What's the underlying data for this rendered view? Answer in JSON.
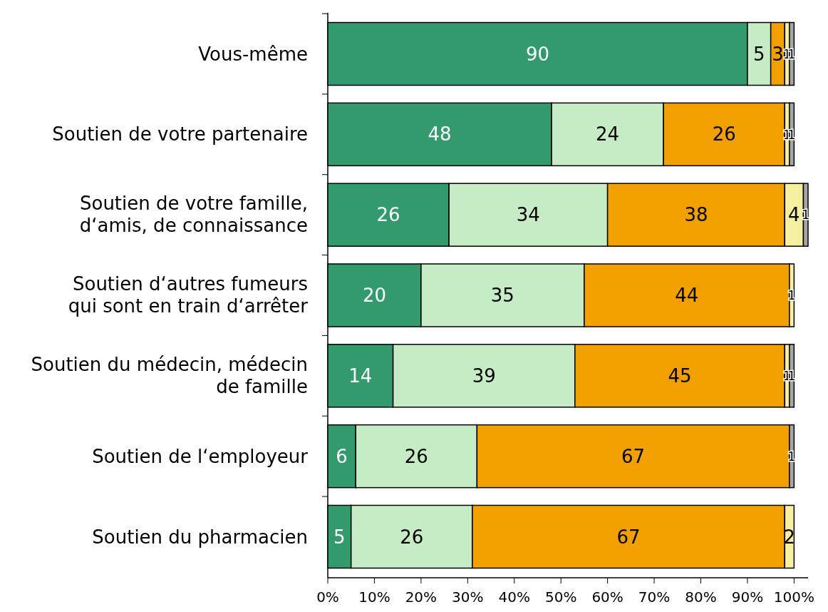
{
  "chart_data": {
    "type": "bar",
    "orientation": "horizontal",
    "stacked": true,
    "data_labels": true,
    "categories": [
      "Vous-même",
      "Soutien de votre partenaire",
      "Soutien de votre famille, d‘amis, de connaissance",
      "Soutien d‘autres fumeurs qui sont en train d‘arrêter",
      "Soutien du médecin, médecin de famille",
      "Soutien de l‘employeur",
      "Soutien du pharmacien"
    ],
    "series": [
      {
        "color": "#339a6e",
        "values": [
          90,
          48,
          26,
          20,
          14,
          6,
          5
        ]
      },
      {
        "color": "#c6ecc6",
        "values": [
          5,
          24,
          34,
          35,
          39,
          26,
          26
        ]
      },
      {
        "color": "#f2a000",
        "values": [
          3,
          26,
          38,
          44,
          45,
          67,
          67
        ]
      },
      {
        "color": "#f5efa0",
        "values": [
          1,
          1,
          4,
          1,
          1,
          null,
          2
        ]
      },
      {
        "color": "#a6a6a6",
        "values": [
          1,
          1,
          1,
          null,
          1,
          1,
          null
        ]
      }
    ],
    "xlim": [
      0,
      103
    ],
    "xticks": [
      {
        "value": 0,
        "label": "0%"
      },
      {
        "value": 10,
        "label": "10%"
      },
      {
        "value": 20,
        "label": "20%"
      },
      {
        "value": 30,
        "label": "30%"
      },
      {
        "value": 40,
        "label": "40%"
      },
      {
        "value": 50,
        "label": "50%"
      },
      {
        "value": 60,
        "label": "60%"
      },
      {
        "value": 70,
        "label": "70%"
      },
      {
        "value": 80,
        "label": "80%"
      },
      {
        "value": 90,
        "label": "90%"
      },
      {
        "value": 100,
        "label": "100%"
      }
    ]
  }
}
